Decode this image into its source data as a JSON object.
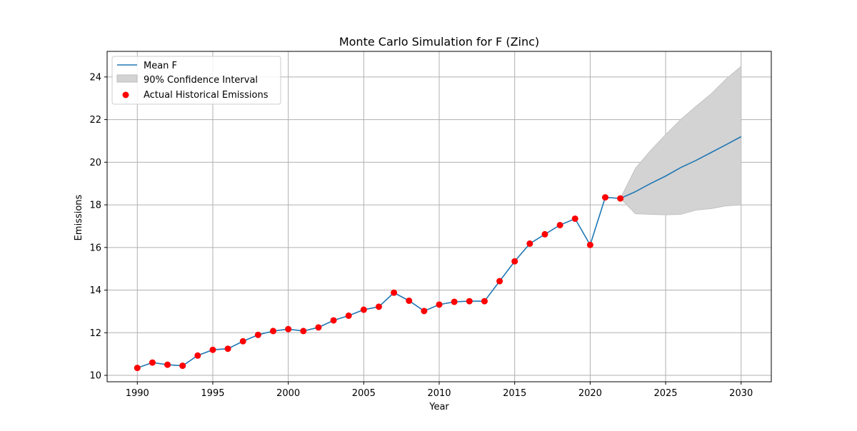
{
  "chart_data": {
    "type": "line",
    "title": "Monte Carlo Simulation for F (Zinc)",
    "xlabel": "Year",
    "ylabel": "Emissions",
    "xlim": [
      1988,
      2032
    ],
    "ylim": [
      9.7,
      25.2
    ],
    "xticks": [
      1990,
      1995,
      2000,
      2005,
      2010,
      2015,
      2020,
      2025,
      2030
    ],
    "yticks": [
      10,
      12,
      14,
      16,
      18,
      20,
      22,
      24
    ],
    "grid": true,
    "legend_position": "top-left",
    "colors": {
      "mean": "#1f77b4",
      "ci_fill": "#d3d3d3",
      "ci_edge": "#bdbdbd",
      "actual": "#ff0000",
      "grid": "#b0b0b0",
      "axis": "#000000"
    },
    "legend": [
      {
        "label": "Mean F",
        "kind": "line"
      },
      {
        "label": "90% Confidence Interval",
        "kind": "patch"
      },
      {
        "label": "Actual Historical Emissions",
        "kind": "marker"
      }
    ],
    "series": [
      {
        "name": "Mean F",
        "x": [
          1990,
          1991,
          1992,
          1993,
          1994,
          1995,
          1996,
          1997,
          1998,
          1999,
          2000,
          2001,
          2002,
          2003,
          2004,
          2005,
          2006,
          2007,
          2008,
          2009,
          2010,
          2011,
          2012,
          2013,
          2014,
          2015,
          2016,
          2017,
          2018,
          2019,
          2020,
          2021,
          2022,
          2023,
          2024,
          2025,
          2026,
          2027,
          2028,
          2029,
          2030
        ],
        "y": [
          10.35,
          10.6,
          10.5,
          10.45,
          10.93,
          11.2,
          11.25,
          11.6,
          11.9,
          12.08,
          12.17,
          12.08,
          12.25,
          12.58,
          12.8,
          13.08,
          13.22,
          13.88,
          13.5,
          13.02,
          13.32,
          13.45,
          13.48,
          13.48,
          14.42,
          15.35,
          16.18,
          16.62,
          17.05,
          17.35,
          16.12,
          18.35,
          18.3,
          18.62,
          19.0,
          19.35,
          19.75,
          20.08,
          20.45,
          20.82,
          21.2
        ]
      },
      {
        "name": "90% Confidence Interval",
        "x": [
          2022,
          2023,
          2024,
          2025,
          2026,
          2027,
          2028,
          2029,
          2030
        ],
        "lower": [
          18.3,
          17.58,
          17.55,
          17.53,
          17.55,
          17.75,
          17.82,
          17.95,
          18.0
        ],
        "upper": [
          18.3,
          19.72,
          20.55,
          21.3,
          22.0,
          22.62,
          23.2,
          23.9,
          24.5
        ]
      },
      {
        "name": "Actual Historical Emissions",
        "x": [
          1990,
          1991,
          1992,
          1993,
          1994,
          1995,
          1996,
          1997,
          1998,
          1999,
          2000,
          2001,
          2002,
          2003,
          2004,
          2005,
          2006,
          2007,
          2008,
          2009,
          2010,
          2011,
          2012,
          2013,
          2014,
          2015,
          2016,
          2017,
          2018,
          2019,
          2020,
          2021,
          2022
        ],
        "y": [
          10.35,
          10.6,
          10.5,
          10.45,
          10.93,
          11.2,
          11.25,
          11.6,
          11.9,
          12.08,
          12.17,
          12.08,
          12.25,
          12.58,
          12.8,
          13.08,
          13.22,
          13.88,
          13.5,
          13.02,
          13.32,
          13.45,
          13.48,
          13.48,
          14.42,
          15.35,
          16.18,
          16.62,
          17.05,
          17.35,
          16.12,
          18.35,
          18.3
        ]
      }
    ]
  }
}
